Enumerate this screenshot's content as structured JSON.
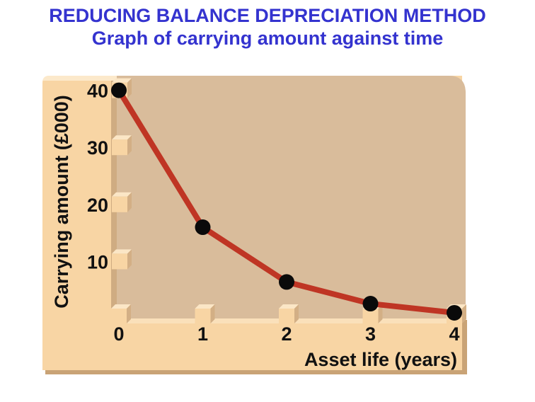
{
  "page": {
    "title": "REDUCING BALANCE DEPRECIATION METHOD",
    "subtitle": "Graph of carrying amount against time",
    "background": "#FFFFFF"
  },
  "colors": {
    "heading": "#3433CF",
    "axis_text": "#111111",
    "panel": "#F8D5A4",
    "panel_highlight": "#FCE9CB",
    "strip_highlight": "#FAE0BA",
    "panel_shadow": "#C9A376",
    "seam": "#CFAC82",
    "plot_background": "#D9BC9B",
    "tick_box_top": "#FBE6C6",
    "tick_box_side": "#D3AF85"
  },
  "chart_data": {
    "type": "line",
    "title": "REDUCING BALANCE DEPRECIATION METHOD",
    "subtitle": "Graph of carrying amount against time",
    "xlabel": "Asset life (years)",
    "ylabel": "Carrying amount (£000)",
    "x": [
      0,
      1,
      2,
      3,
      4
    ],
    "series": [
      {
        "name": "Carrying amount (£000)",
        "values": [
          40,
          16,
          6.4,
          2.6,
          1
        ]
      }
    ],
    "x_ticks": [
      0,
      1,
      2,
      3,
      4
    ],
    "y_ticks": [
      10,
      20,
      30,
      40
    ],
    "xlim": [
      0,
      4.15
    ],
    "ylim": [
      0,
      43
    ],
    "grid": false,
    "legend": "none",
    "line_color": "#BF3524",
    "marker_color": "#0A0A0A",
    "marker_shape": "circle"
  }
}
